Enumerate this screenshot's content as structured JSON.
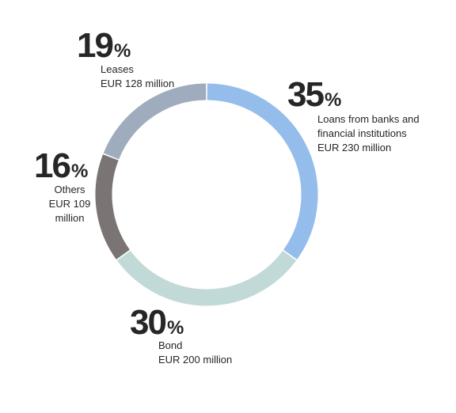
{
  "chart_data": {
    "type": "pie",
    "donut": true,
    "start_at": "top",
    "direction": "clockwise",
    "slices": [
      {
        "value": 35,
        "pct_number": "35",
        "pct_sign": "%",
        "label_lines": [
          "Loans from banks and",
          "financial institutions",
          "EUR 230 million"
        ],
        "color": "#95BDEB"
      },
      {
        "value": 30,
        "pct_number": "30",
        "pct_sign": "%",
        "label_lines": [
          "Bond",
          "EUR 200 million"
        ],
        "color": "#C2DAD7"
      },
      {
        "value": 16,
        "pct_number": "16",
        "pct_sign": "%",
        "label_lines": [
          "Others",
          "EUR 109",
          "million"
        ],
        "color": "#7A7574"
      },
      {
        "value": 19,
        "pct_number": "19",
        "pct_sign": "%",
        "label_lines": [
          "Leases",
          "EUR 128 million"
        ],
        "color": "#9FACBE"
      }
    ]
  }
}
